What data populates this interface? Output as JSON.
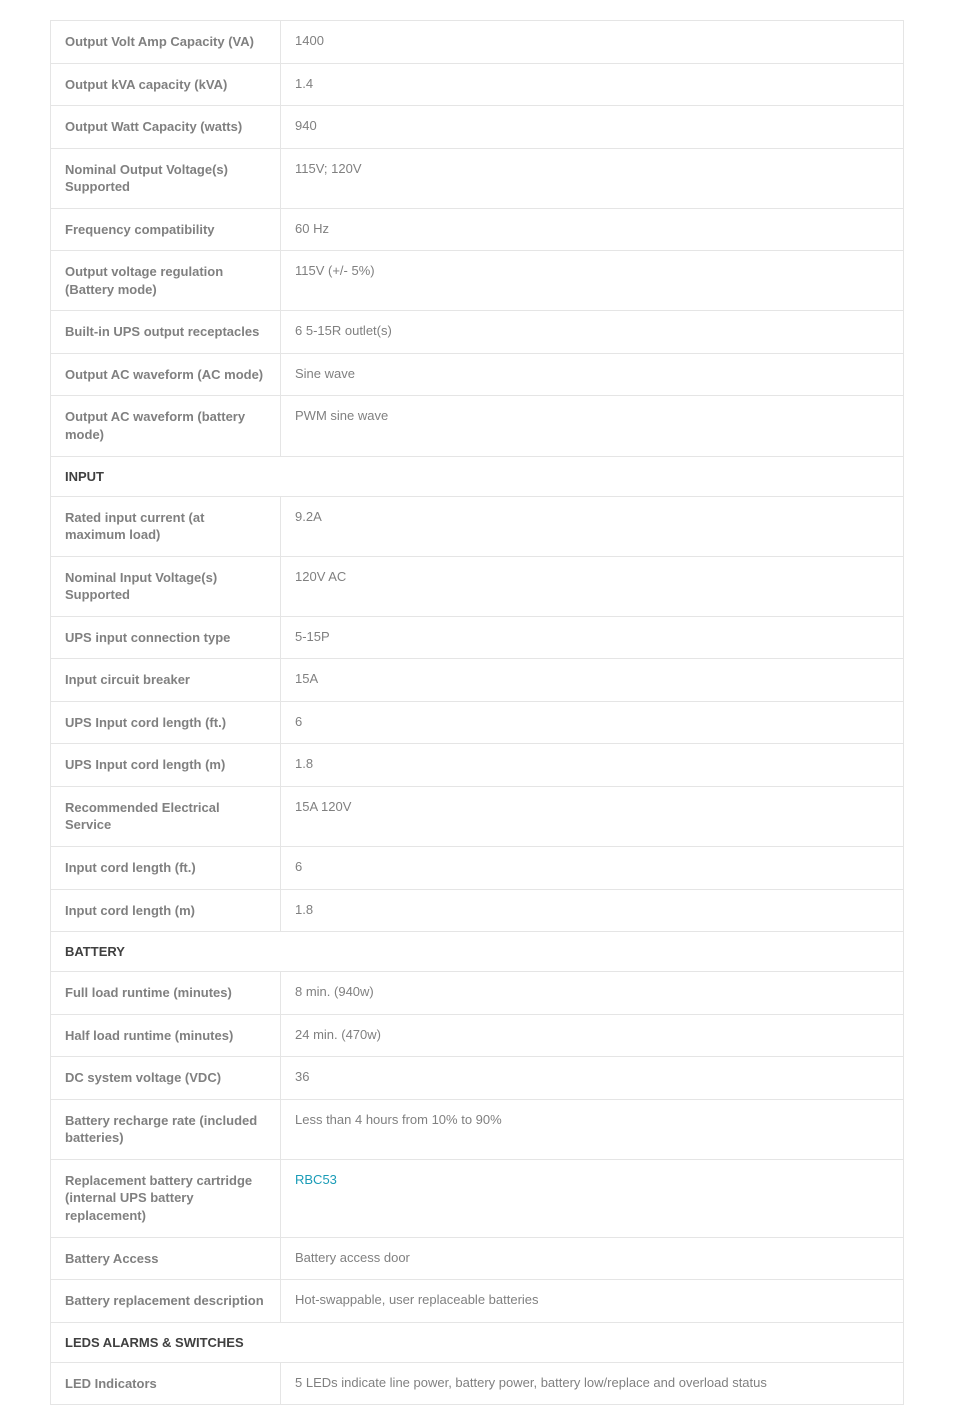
{
  "sections": [
    {
      "type": "rows",
      "rows": [
        {
          "label": "Output Volt Amp Capacity (VA)",
          "value": "1400"
        },
        {
          "label": "Output kVA capacity (kVA)",
          "value": "1.4"
        },
        {
          "label": "Output Watt Capacity (watts)",
          "value": "940"
        },
        {
          "label": "Nominal Output Voltage(s) Supported",
          "value": "115V; 120V"
        },
        {
          "label": "Frequency compatibility",
          "value": "60 Hz"
        },
        {
          "label": "Output voltage regulation (Battery mode)",
          "value": "115V (+/- 5%)"
        },
        {
          "label": "Built-in UPS output receptacles",
          "value": "6 5-15R outlet(s)"
        },
        {
          "label": "Output AC waveform (AC mode)",
          "value": "Sine wave"
        },
        {
          "label": "Output AC waveform (battery mode)",
          "value": "PWM sine wave"
        }
      ]
    },
    {
      "type": "header",
      "title": "INPUT"
    },
    {
      "type": "rows",
      "rows": [
        {
          "label": "Rated input current (at maximum load)",
          "value": "9.2A"
        },
        {
          "label": "Nominal Input Voltage(s) Supported",
          "value": "120V AC"
        },
        {
          "label": "UPS input connection type",
          "value": "5-15P"
        },
        {
          "label": "Input circuit breaker",
          "value": "15A"
        },
        {
          "label": "UPS Input cord length (ft.)",
          "value": "6"
        },
        {
          "label": "UPS Input cord length (m)",
          "value": "1.8"
        },
        {
          "label": "Recommended Electrical Service",
          "value": "15A 120V"
        },
        {
          "label": "Input cord length (ft.)",
          "value": "6"
        },
        {
          "label": "Input cord length (m)",
          "value": "1.8"
        }
      ]
    },
    {
      "type": "header",
      "title": "BATTERY"
    },
    {
      "type": "rows",
      "rows": [
        {
          "label": "Full load runtime (minutes)",
          "value": "8 min. (940w)"
        },
        {
          "label": "Half load runtime (minutes)",
          "value": "24 min. (470w)"
        },
        {
          "label": "DC system voltage (VDC)",
          "value": "36"
        },
        {
          "label": "Battery recharge rate (included batteries)",
          "value": "Less than 4 hours from 10% to 90%"
        },
        {
          "label": "Replacement battery cartridge (internal UPS battery replacement)",
          "value": "RBC53",
          "link": true
        },
        {
          "label": "Battery Access",
          "value": "Battery access door"
        },
        {
          "label": "Battery replacement description",
          "value": "Hot-swappable, user replaceable batteries"
        }
      ]
    },
    {
      "type": "header",
      "title": "LEDS ALARMS & SWITCHES"
    },
    {
      "type": "rows",
      "rows": [
        {
          "label": "LED Indicators",
          "value": "5 LEDs indicate line power, battery power, battery low/replace and overload status"
        }
      ]
    }
  ],
  "colors": {
    "border": "#e5e5e5",
    "label_text": "#808080",
    "value_text": "#808080",
    "header_text": "#404040",
    "link": "#1a9cb7",
    "background": "#ffffff"
  },
  "fonts": {
    "base_size": 13,
    "family": "Arial"
  }
}
